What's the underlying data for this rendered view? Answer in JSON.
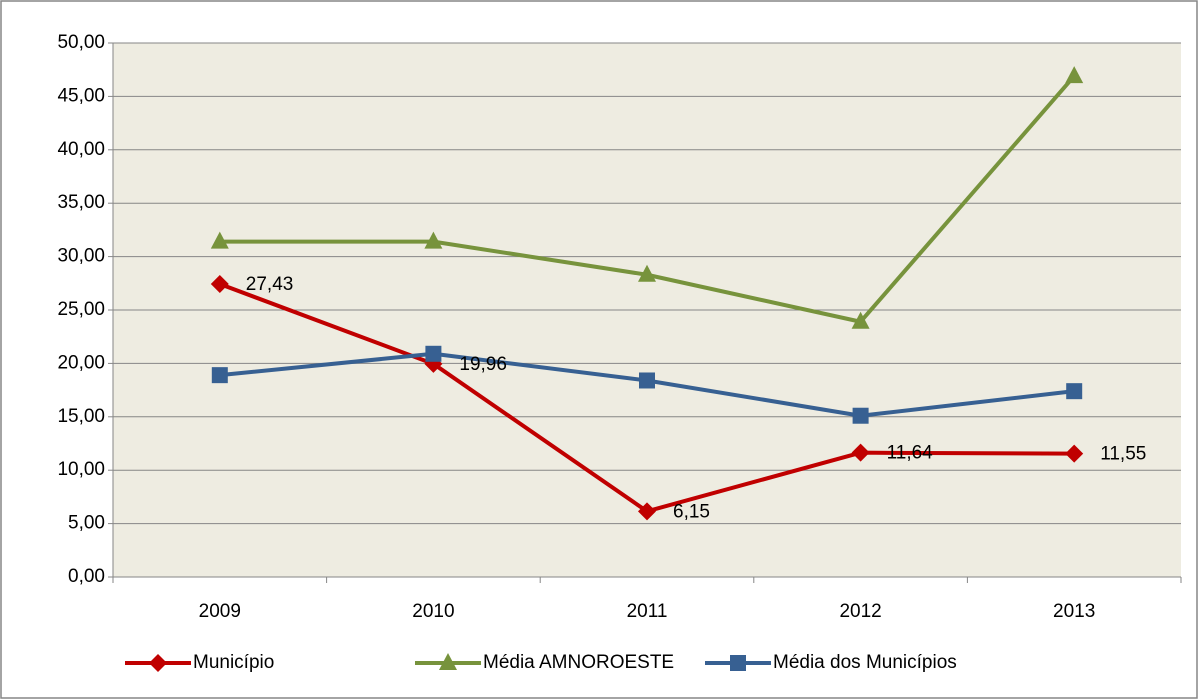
{
  "chart_data": {
    "type": "line",
    "categories": [
      "2009",
      "2010",
      "2011",
      "2012",
      "2013"
    ],
    "series": [
      {
        "name": "Município",
        "color": "#c00000",
        "marker": "diamond",
        "values": [
          27.43,
          19.96,
          6.15,
          11.64,
          11.55
        ],
        "value_labels": [
          "27,43",
          "19,96",
          "6,15",
          "11,64",
          "11,55"
        ]
      },
      {
        "name": "Média AMNOROESTE",
        "color": "#77933c",
        "marker": "triangle",
        "values": [
          31.4,
          31.4,
          28.3,
          23.9,
          46.9
        ]
      },
      {
        "name": "Média dos Municípios",
        "color": "#376092",
        "marker": "square",
        "values": [
          18.9,
          20.9,
          18.4,
          15.1,
          17.4
        ]
      }
    ],
    "ylim": [
      0,
      50
    ],
    "yticks": [
      {
        "value": 0,
        "label": "0,00"
      },
      {
        "value": 5,
        "label": "5,00"
      },
      {
        "value": 10,
        "label": "10,00"
      },
      {
        "value": 15,
        "label": "15,00"
      },
      {
        "value": 20,
        "label": "20,00"
      },
      {
        "value": 25,
        "label": "25,00"
      },
      {
        "value": 30,
        "label": "30,00"
      },
      {
        "value": 35,
        "label": "35,00"
      },
      {
        "value": 40,
        "label": "40,00"
      },
      {
        "value": 45,
        "label": "45,00"
      },
      {
        "value": 50,
        "label": "50,00"
      }
    ],
    "grid": true,
    "legend": "bottom"
  }
}
